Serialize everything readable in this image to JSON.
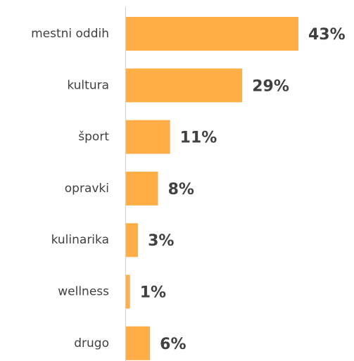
{
  "chart_data": {
    "type": "bar",
    "orientation": "horizontal",
    "categories": [
      "mestni oddih",
      "kultura",
      "šport",
      "opravki",
      "kulinarika",
      "wellness",
      "drugo"
    ],
    "values": [
      43,
      29,
      11,
      8,
      3,
      1,
      6
    ],
    "value_labels": [
      "43%",
      "29%",
      "11%",
      "8%",
      "3%",
      "1%",
      "6%"
    ],
    "color": "#ffad47"
  }
}
